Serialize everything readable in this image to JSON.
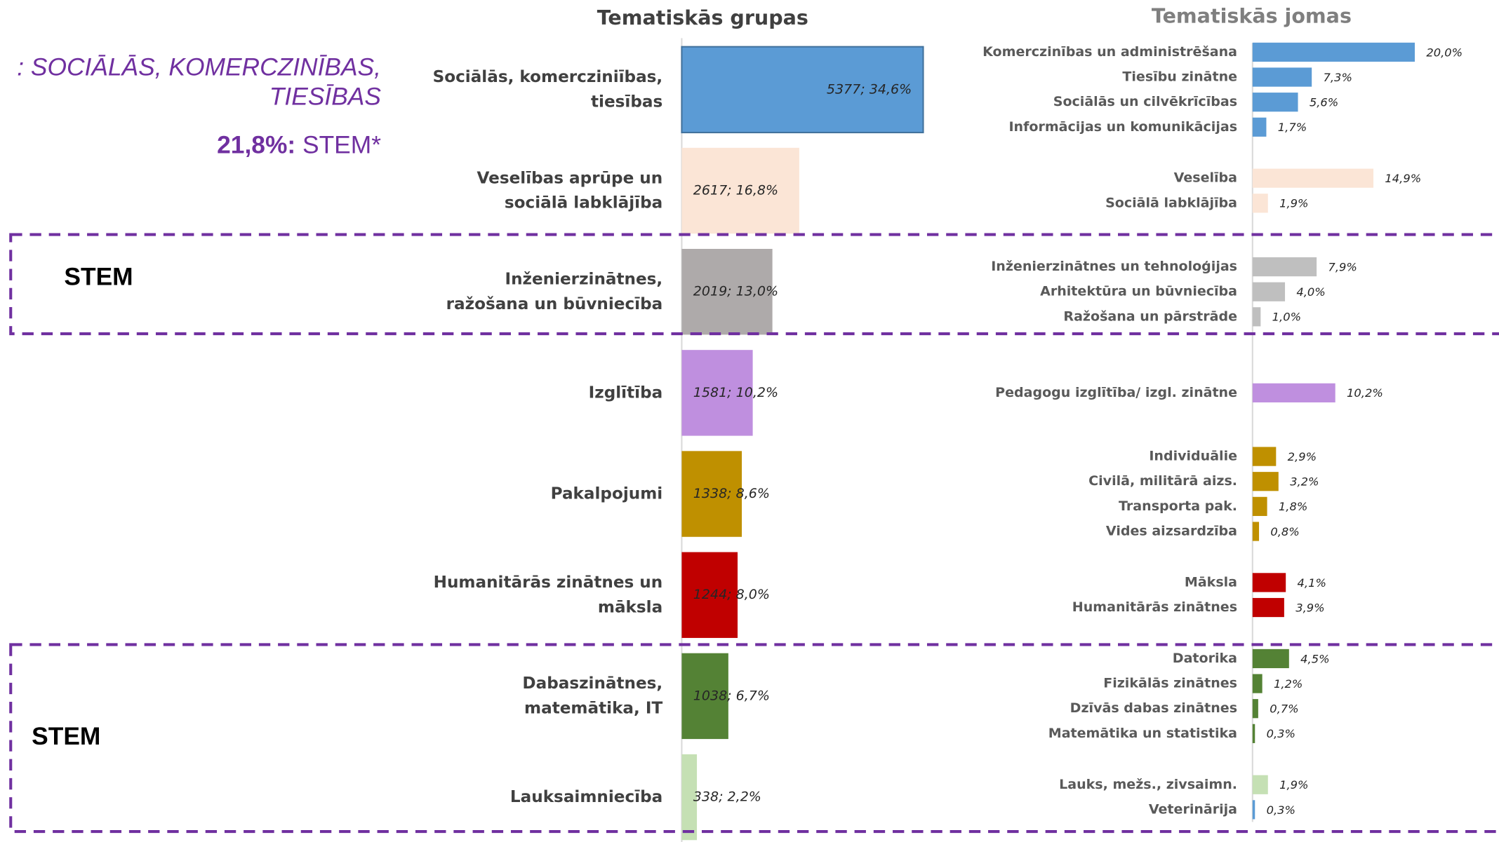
{
  "chart_data": [
    {
      "type": "bar",
      "title": "Tematiskās grupas",
      "categories": [
        [
          "Sociālās, komercziniības,",
          "tiesības"
        ],
        [
          "Veselības aprūpe un",
          "sociālā labklājība"
        ],
        [
          "Inženierzinātnes,",
          "ražošana un būvniecība"
        ],
        [
          "Izglītība"
        ],
        [
          "Pakalpojumi"
        ],
        [
          "Humanitārās zinātnes un",
          "māksla"
        ],
        [
          "Dabaszinātnes,",
          "matemātika, IT"
        ],
        [
          "Lauksaimniecība"
        ]
      ],
      "values": [
        5377,
        2617,
        2019,
        1581,
        1338,
        1244,
        1038,
        338
      ],
      "value_labels": [
        "5377; 34,6%",
        "2617; 16,8%",
        "2019; 13,0%",
        "1581; 10,2%",
        "1338; 8,6%",
        "1244; 8,0%",
        "1038; 6,7%",
        "338; 2,2%"
      ],
      "colors": [
        "#5b9bd5",
        "#fbe5d6",
        "#aeaaaa",
        "#bf8fdf",
        "#bf9000",
        "#c00000",
        "#548235",
        "#c5e0b4"
      ],
      "xlim": [
        0,
        10000
      ]
    },
    {
      "type": "bar",
      "title": "Tematiskās jomas",
      "groups": [
        {
          "categories": [
            "Komerczinības un administrēšana",
            "Tiesību zinātne",
            "Sociālās un cilvēkrīcības",
            "Informācijas un komunikācijas"
          ],
          "values": [
            20.0,
            7.3,
            5.6,
            1.7
          ],
          "value_labels": [
            "20,0%",
            "7,3%",
            "5,6%",
            "1,7%"
          ],
          "colors": [
            "#5b9bd5",
            "#5b9bd5",
            "#5b9bd5",
            "#5b9bd5"
          ]
        },
        {
          "categories": [
            "Veselība",
            "Sociālā labklājība"
          ],
          "values": [
            14.9,
            1.9
          ],
          "value_labels": [
            "14,9%",
            "1,9%"
          ],
          "colors": [
            "#fbe5d6",
            "#fbe5d6"
          ]
        },
        {
          "categories": [
            "Inženierzinātnes un tehnoloģijas",
            "Arhitektūra un būvniecība",
            "Ražošana un pārstrāde"
          ],
          "values": [
            7.9,
            4.0,
            1.0
          ],
          "value_labels": [
            "7,9%",
            "4,0%",
            "1,0%"
          ],
          "colors": [
            "#bfbfbf",
            "#bfbfbf",
            "#bfbfbf"
          ]
        },
        {
          "categories": [
            "Pedagogu izglītība/ izgl. zinātne"
          ],
          "values": [
            10.2
          ],
          "value_labels": [
            "10,2%"
          ],
          "colors": [
            "#bf8fdf"
          ]
        },
        {
          "categories": [
            "Individuālie",
            "Civilā, militārā aizs.",
            "Transporta pak.",
            "Vides aizsardzība"
          ],
          "values": [
            2.9,
            3.2,
            1.8,
            0.8
          ],
          "value_labels": [
            "2,9%",
            "3,2%",
            "1,8%",
            "0,8%"
          ],
          "colors": [
            "#bf9000",
            "#bf9000",
            "#bf9000",
            "#bf9000"
          ]
        },
        {
          "categories": [
            "Māksla",
            "Humanitārās zinātnes"
          ],
          "values": [
            4.1,
            3.9
          ],
          "value_labels": [
            "4,1%",
            "3,9%"
          ],
          "colors": [
            "#c00000",
            "#c00000"
          ]
        },
        {
          "categories": [
            "Datorika",
            "Fizikālās zinātnes",
            "Dzīvās dabas zinātnes",
            "Matemātika un statistika"
          ],
          "values": [
            4.5,
            1.2,
            0.7,
            0.3
          ],
          "value_labels": [
            "4,5%",
            "1,2%",
            "0,7%",
            "0,3%"
          ],
          "colors": [
            "#548235",
            "#548235",
            "#548235",
            "#548235"
          ]
        },
        {
          "categories": [
            "Lauks, mežs., zivsaimn.",
            "Veterinārija"
          ],
          "values": [
            1.9,
            0.3
          ],
          "value_labels": [
            "1,9%",
            "0,3%"
          ],
          "colors": [
            "#c5e0b4",
            "#5b9bd5"
          ]
        }
      ],
      "xlim": [
        0,
        30
      ]
    }
  ],
  "annotations": {
    "headline_lines": [
      ": SOCIĀLĀS, KOMERCZINĪBAS,",
      "TIESĪBAS"
    ],
    "stem_share": "21,8%:",
    "stem_share_label": "STEM*",
    "stem_labels": [
      "STEM",
      "STEM"
    ]
  }
}
